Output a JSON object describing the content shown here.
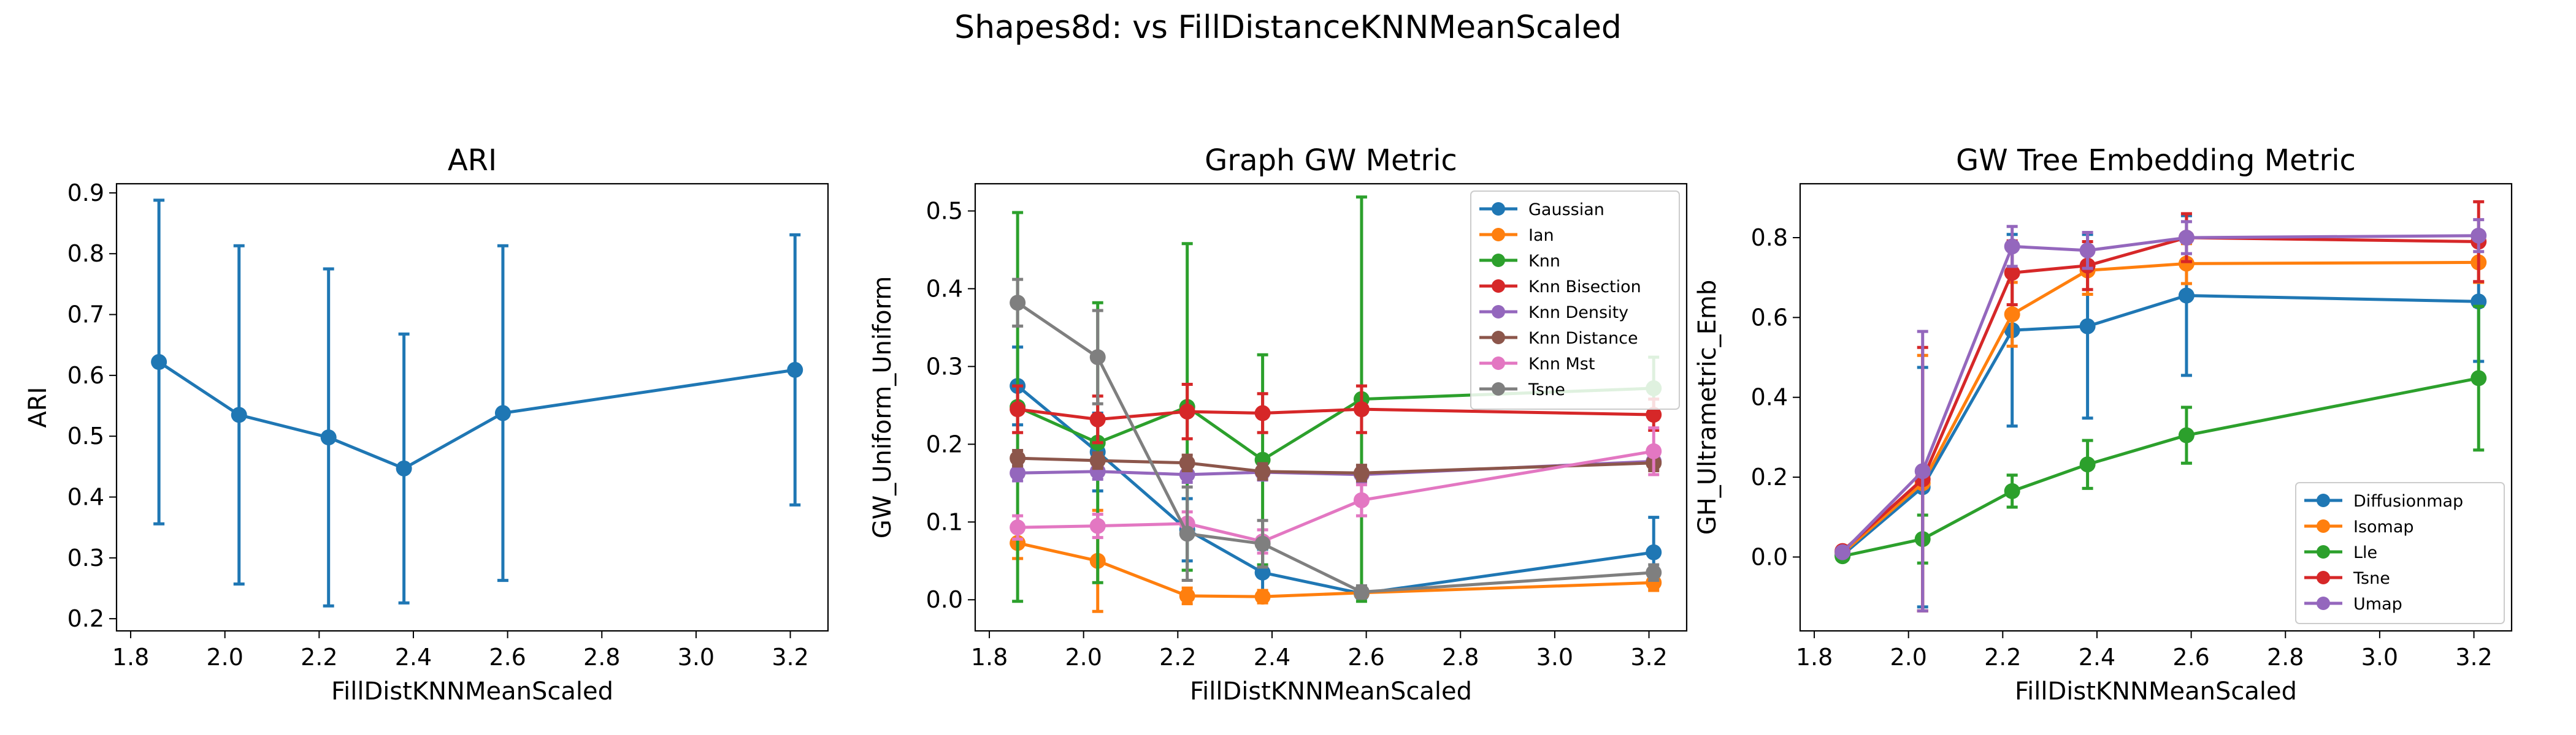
{
  "suptitle": "Shapes8d: vs FillDistanceKNNMeanScaled",
  "colors": {
    "tab_blue": "#1f77b4",
    "tab_orange": "#ff7f0e",
    "tab_green": "#2ca02c",
    "tab_red": "#d62728",
    "tab_purple": "#9467bd",
    "tab_brown": "#8c564b",
    "tab_pink": "#e377c2",
    "tab_gray": "#7f7f7f"
  },
  "chart_data": [
    {
      "type": "line",
      "title": "ARI",
      "xlabel": "FillDistKNNMeanScaled",
      "ylabel": "ARI",
      "xlim": [
        1.77,
        3.28
      ],
      "ylim": [
        0.18,
        0.915
      ],
      "xticks": [
        "1.8",
        "2.0",
        "2.2",
        "2.4",
        "2.6",
        "2.8",
        "3.0",
        "3.2"
      ],
      "yticks": [
        "0.2",
        "0.3",
        "0.4",
        "0.5",
        "0.6",
        "0.7",
        "0.8",
        "0.9"
      ],
      "x": [
        1.86,
        2.03,
        2.22,
        2.38,
        2.59,
        3.21
      ],
      "legend": "none",
      "series": [
        {
          "name": "",
          "color": "#1f77b4",
          "values": [
            0.622,
            0.535,
            0.498,
            0.447,
            0.538,
            0.609
          ],
          "errors": [
            0.266,
            0.278,
            0.277,
            0.221,
            0.275,
            0.222
          ]
        }
      ]
    },
    {
      "type": "line",
      "title": "Graph GW Metric",
      "xlabel": "FillDistKNNMeanScaled",
      "ylabel": "GW_Uniform_Uniform",
      "xlim": [
        1.77,
        3.28
      ],
      "ylim": [
        -0.04,
        0.535
      ],
      "xticks": [
        "1.8",
        "2.0",
        "2.2",
        "2.4",
        "2.6",
        "2.8",
        "3.0",
        "3.2"
      ],
      "yticks": [
        "0.0",
        "0.1",
        "0.2",
        "0.3",
        "0.4",
        "0.5"
      ],
      "x": [
        1.86,
        2.03,
        2.22,
        2.38,
        2.59,
        3.21
      ],
      "legend": "upper-right",
      "series": [
        {
          "name": "Gaussian",
          "color": "#1f77b4",
          "values": [
            0.275,
            0.19,
            0.09,
            0.035,
            0.008,
            0.061
          ],
          "errors": [
            0.05,
            0.05,
            0.04,
            0.03,
            0.005,
            0.045
          ]
        },
        {
          "name": "Ian",
          "color": "#ff7f0e",
          "values": [
            0.073,
            0.05,
            0.005,
            0.004,
            0.009,
            0.022
          ],
          "errors": [
            0.02,
            0.065,
            0.01,
            0.008,
            0.005,
            0.01
          ]
        },
        {
          "name": "Knn",
          "color": "#2ca02c",
          "values": [
            0.248,
            0.202,
            0.248,
            0.18,
            0.258,
            0.272
          ],
          "errors": [
            0.25,
            0.18,
            0.21,
            0.135,
            0.26,
            0.04
          ]
        },
        {
          "name": "Knn Bisection",
          "color": "#d62728",
          "values": [
            0.245,
            0.232,
            0.242,
            0.24,
            0.245,
            0.238
          ],
          "errors": [
            0.03,
            0.03,
            0.035,
            0.025,
            0.03,
            0.02
          ]
        },
        {
          "name": "Knn Density",
          "color": "#9467bd",
          "values": [
            0.163,
            0.165,
            0.161,
            0.164,
            0.161,
            0.178
          ],
          "errors": [
            0.01,
            0.01,
            0.01,
            0.01,
            0.01,
            0.01
          ]
        },
        {
          "name": "Knn Distance",
          "color": "#8c564b",
          "values": [
            0.182,
            0.179,
            0.176,
            0.165,
            0.163,
            0.176
          ],
          "errors": [
            0.01,
            0.01,
            0.01,
            0.01,
            0.01,
            0.01
          ]
        },
        {
          "name": "Knn Mst",
          "color": "#e377c2",
          "values": [
            0.093,
            0.095,
            0.098,
            0.075,
            0.128,
            0.191
          ],
          "errors": [
            0.015,
            0.015,
            0.015,
            0.015,
            0.02,
            0.03
          ]
        },
        {
          "name": "Tsne",
          "color": "#7f7f7f",
          "values": [
            0.382,
            0.312,
            0.085,
            0.072,
            0.01,
            0.035
          ],
          "errors": [
            0.03,
            0.06,
            0.06,
            0.03,
            0.008,
            0.01
          ]
        }
      ]
    },
    {
      "type": "line",
      "title": "GW Tree Embedding Metric",
      "xlabel": "FillDistKNNMeanScaled",
      "ylabel": "GH_Ultrametric_Emb",
      "xlim": [
        1.77,
        3.28
      ],
      "ylim": [
        -0.185,
        0.935
      ],
      "xticks": [
        "1.8",
        "2.0",
        "2.2",
        "2.4",
        "2.6",
        "2.8",
        "3.0",
        "3.2"
      ],
      "yticks": [
        "0.0",
        "0.2",
        "0.4",
        "0.6",
        "0.8"
      ],
      "x": [
        1.86,
        2.03,
        2.22,
        2.38,
        2.59,
        3.21
      ],
      "legend": "lower-right",
      "series": [
        {
          "name": "Diffusionmap",
          "color": "#1f77b4",
          "values": [
            0.005,
            0.175,
            0.568,
            0.578,
            0.655,
            0.64
          ],
          "errors": [
            0.01,
            0.3,
            0.24,
            0.23,
            0.2,
            0.15
          ]
        },
        {
          "name": "Isomap",
          "color": "#ff7f0e",
          "values": [
            0.01,
            0.185,
            0.608,
            0.718,
            0.735,
            0.738
          ],
          "errors": [
            0.01,
            0.32,
            0.08,
            0.06,
            0.05,
            0.05
          ]
        },
        {
          "name": "Lle",
          "color": "#2ca02c",
          "values": [
            0.002,
            0.045,
            0.165,
            0.232,
            0.305,
            0.448
          ],
          "errors": [
            0.005,
            0.06,
            0.04,
            0.06,
            0.07,
            0.18
          ]
        },
        {
          "name": "Tsne",
          "color": "#d62728",
          "values": [
            0.015,
            0.195,
            0.712,
            0.73,
            0.8,
            0.79
          ],
          "errors": [
            0.01,
            0.33,
            0.08,
            0.06,
            0.06,
            0.1
          ]
        },
        {
          "name": "Umap",
          "color": "#9467bd",
          "values": [
            0.012,
            0.215,
            0.778,
            0.768,
            0.8,
            0.805
          ],
          "errors": [
            0.01,
            0.35,
            0.05,
            0.045,
            0.04,
            0.04
          ]
        }
      ]
    }
  ]
}
